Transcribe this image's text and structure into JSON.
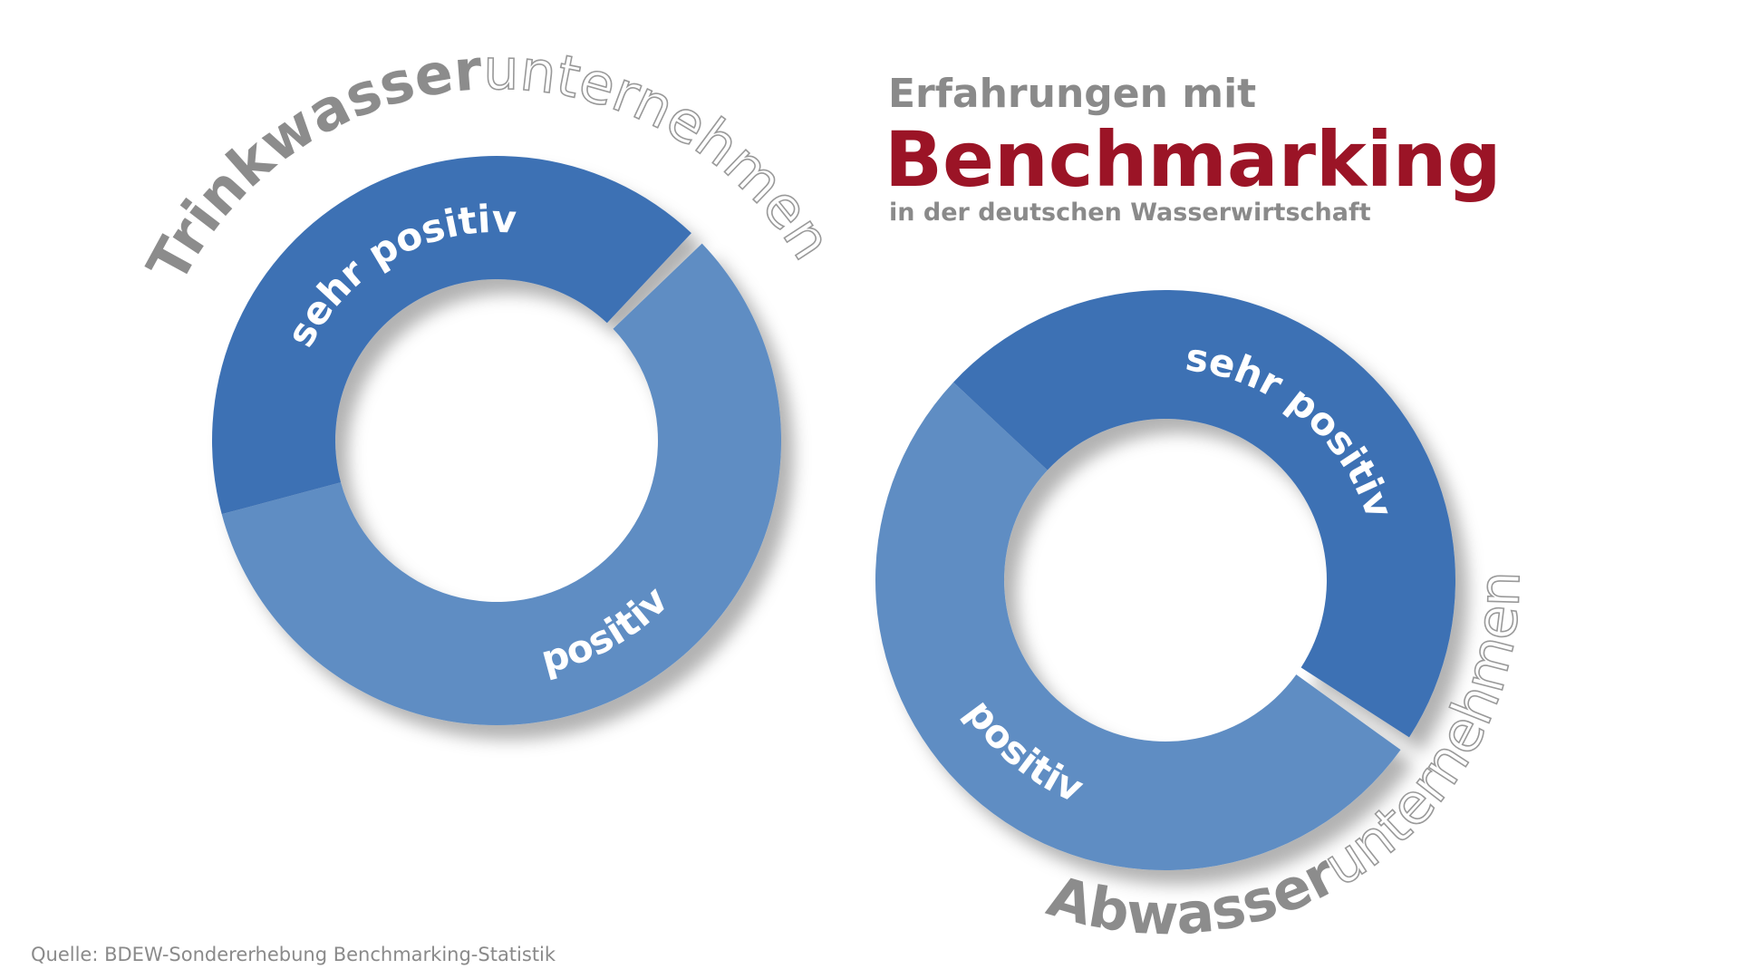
{
  "header": {
    "line1": "Erfahrungen mit",
    "title": "Benchmarking",
    "subtitle": "in der deutschen Wasserwirtschaft"
  },
  "source": "Quelle: BDEW-Sondererhebung Benchmarking-Statistik",
  "chart_data": [
    {
      "type": "pie",
      "title": "Trinkwasser",
      "title_suffix": "unternehmen",
      "categories": [
        "sehr positiv",
        "positiv"
      ],
      "values": [
        42,
        58
      ],
      "colors": [
        "#3e71b4",
        "#5f8dc3"
      ]
    },
    {
      "type": "pie",
      "title": "Abwasser",
      "title_suffix": "unternehmen",
      "categories": [
        "sehr positiv",
        "positiv"
      ],
      "values": [
        48,
        52
      ],
      "colors": [
        "#3e71b4",
        "#5f8dc3"
      ]
    }
  ]
}
